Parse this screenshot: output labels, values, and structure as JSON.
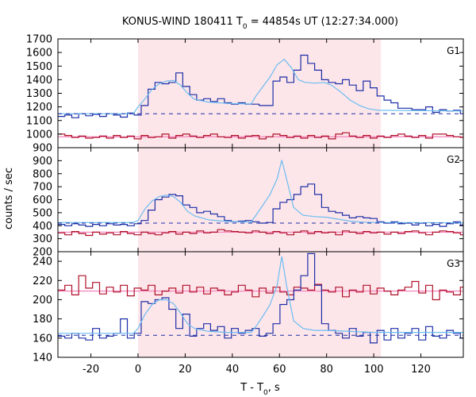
{
  "chart_data": {
    "type": "line",
    "title_main": "KONUS-WIND 180411 T",
    "title_sub": "0",
    "title_rest": " = 44854s UT (12:27:34.000)",
    "xlabel_main": "T - T",
    "xlabel_sub": "0",
    "xlabel_rest": ", s",
    "ylabel": "counts / sec",
    "xlim": [
      -34,
      138
    ],
    "xticks": [
      -20,
      0,
      20,
      40,
      60,
      80,
      100,
      120
    ],
    "shaded_interval": [
      0,
      103
    ],
    "bin_width": 2.944,
    "colors": {
      "trigger": "#1c2ea6",
      "background": "#b0102a",
      "model": "#6bbcf0",
      "bg_fit": "#f48cc0",
      "shade": "#fde6ea"
    },
    "panels": [
      {
        "label": "G1",
        "ylim": [
          900,
          1700
        ],
        "yticks": [
          900,
          1000,
          1100,
          1200,
          1300,
          1400,
          1500,
          1600,
          1700
        ],
        "bg_level": 1150,
        "bg_fit_level": 980,
        "trigger": [
          1130,
          1140,
          1120,
          1150,
          1135,
          1145,
          1130,
          1150,
          1140,
          1125,
          1155,
          1140,
          1210,
          1330,
          1380,
          1370,
          1380,
          1450,
          1350,
          1290,
          1250,
          1260,
          1240,
          1260,
          1230,
          1220,
          1230,
          1220,
          1220,
          1210,
          1210,
          1390,
          1420,
          1380,
          1470,
          1580,
          1520,
          1470,
          1400,
          1380,
          1370,
          1400,
          1360,
          1320,
          1390,
          1340,
          1280,
          1250,
          1230,
          1190,
          1190,
          1180,
          1180,
          1200,
          1160,
          1180,
          1170,
          1175,
          1150,
          1170,
          1180,
          1170,
          1140,
          1200,
          1155,
          1140
        ],
        "background": [
          1000,
          990,
          975,
          985,
          970,
          975,
          985,
          970,
          990,
          975,
          985,
          965,
          990,
          975,
          980,
          1000,
          970,
          990,
          1000,
          985,
          975,
          990,
          1000,
          980,
          975,
          990,
          970,
          985,
          990,
          965,
          980,
          1000,
          990,
          975,
          985,
          970,
          990,
          975,
          985,
          965,
          1000,
          1010,
          985,
          975,
          990,
          970,
          985,
          975,
          990,
          1000,
          985,
          975,
          990,
          970,
          1000,
          1000,
          990,
          980,
          975,
          990,
          960,
          980,
          985,
          970,
          960,
          975
        ],
        "model": [
          [
            -34,
            1150
          ],
          [
            -2,
            1150
          ],
          [
            0,
            1200
          ],
          [
            3,
            1260
          ],
          [
            6,
            1330
          ],
          [
            9,
            1370
          ],
          [
            12,
            1390
          ],
          [
            15,
            1395
          ],
          [
            18,
            1360
          ],
          [
            21,
            1300
          ],
          [
            24,
            1255
          ],
          [
            30,
            1235
          ],
          [
            38,
            1225
          ],
          [
            48,
            1222
          ],
          [
            50,
            1280
          ],
          [
            53,
            1350
          ],
          [
            56,
            1420
          ],
          [
            59,
            1510
          ],
          [
            62,
            1550
          ],
          [
            65,
            1490
          ],
          [
            68,
            1400
          ],
          [
            71,
            1380
          ],
          [
            75,
            1375
          ],
          [
            79,
            1380
          ],
          [
            82,
            1360
          ],
          [
            86,
            1310
          ],
          [
            90,
            1250
          ],
          [
            94,
            1210
          ],
          [
            98,
            1185
          ],
          [
            102,
            1175
          ],
          [
            138,
            1170
          ]
        ]
      },
      {
        "label": "G2",
        "ylim": [
          200,
          1000
        ],
        "yticks": [
          200,
          300,
          400,
          500,
          600,
          700,
          800,
          900
        ],
        "bg_level": 420,
        "bg_fit_level": 350,
        "trigger": [
          410,
          400,
          415,
          405,
          395,
          410,
          400,
          415,
          405,
          410,
          400,
          415,
          440,
          520,
          600,
          620,
          640,
          630,
          560,
          540,
          500,
          510,
          490,
          470,
          440,
          430,
          435,
          440,
          430,
          420,
          425,
          530,
          580,
          600,
          640,
          700,
          720,
          640,
          540,
          510,
          500,
          480,
          460,
          470,
          460,
          455,
          430,
          420,
          430,
          415,
          420,
          405,
          420,
          400,
          410,
          395,
          415,
          430,
          405,
          410,
          400,
          420,
          405,
          395,
          410,
          400
        ],
        "background": [
          345,
          330,
          355,
          340,
          325,
          350,
          335,
          345,
          330,
          355,
          340,
          330,
          350,
          340,
          330,
          345,
          355,
          335,
          350,
          340,
          360,
          345,
          350,
          370,
          360,
          355,
          350,
          345,
          360,
          350,
          340,
          355,
          345,
          330,
          350,
          360,
          340,
          355,
          345,
          350,
          330,
          360,
          350,
          340,
          355,
          345,
          350,
          335,
          350,
          340,
          355,
          360,
          345,
          330,
          350,
          360,
          355,
          345,
          330,
          340,
          350,
          335,
          355,
          340,
          350,
          335
        ],
        "model": [
          [
            -34,
            425
          ],
          [
            -2,
            425
          ],
          [
            0,
            440
          ],
          [
            3,
            530
          ],
          [
            6,
            590
          ],
          [
            9,
            625
          ],
          [
            12,
            635
          ],
          [
            15,
            625
          ],
          [
            18,
            580
          ],
          [
            21,
            510
          ],
          [
            24,
            475
          ],
          [
            30,
            445
          ],
          [
            38,
            432
          ],
          [
            48,
            428
          ],
          [
            50,
            480
          ],
          [
            53,
            560
          ],
          [
            56,
            640
          ],
          [
            59,
            760
          ],
          [
            61,
            905
          ],
          [
            63,
            760
          ],
          [
            66,
            540
          ],
          [
            70,
            480
          ],
          [
            75,
            470
          ],
          [
            80,
            465
          ],
          [
            85,
            450
          ],
          [
            90,
            435
          ],
          [
            95,
            428
          ],
          [
            100,
            425
          ],
          [
            138,
            422
          ]
        ]
      },
      {
        "label": "G3",
        "ylim": [
          140,
          250
        ],
        "yticks": [
          140,
          160,
          180,
          200,
          220,
          240
        ],
        "bg_level": 163,
        "bg_fit_level": 209,
        "trigger": [
          162,
          160,
          165,
          160,
          158,
          170,
          160,
          162,
          165,
          180,
          160,
          165,
          198,
          196,
          200,
          202,
          190,
          170,
          185,
          162,
          170,
          175,
          168,
          172,
          160,
          170,
          165,
          168,
          170,
          162,
          165,
          175,
          195,
          200,
          210,
          225,
          248,
          215,
          175,
          168,
          165,
          160,
          170,
          162,
          166,
          155,
          168,
          158,
          170,
          160,
          165,
          170,
          158,
          172,
          162,
          160,
          168,
          165,
          160,
          162,
          170,
          158,
          165,
          160,
          165,
          160
        ],
        "background": [
          210,
          215,
          205,
          225,
          212,
          218,
          206,
          213,
          208,
          215,
          204,
          212,
          210,
          215,
          205,
          209,
          212,
          207,
          215,
          208,
          213,
          206,
          212,
          210,
          205,
          208,
          215,
          210,
          203,
          212,
          207,
          213,
          208,
          205,
          213,
          212,
          210,
          216,
          210,
          208,
          213,
          203,
          210,
          208,
          215,
          206,
          212,
          209,
          205,
          210,
          213,
          219,
          207,
          215,
          200,
          210,
          208,
          205,
          213,
          208,
          221,
          190,
          209,
          215,
          205,
          213
        ],
        "model": [
          [
            -34,
            165
          ],
          [
            -2,
            165
          ],
          [
            0,
            170
          ],
          [
            3,
            185
          ],
          [
            6,
            195
          ],
          [
            9,
            200
          ],
          [
            12,
            200
          ],
          [
            15,
            196
          ],
          [
            18,
            186
          ],
          [
            21,
            175
          ],
          [
            24,
            170
          ],
          [
            30,
            167
          ],
          [
            38,
            166
          ],
          [
            48,
            166
          ],
          [
            50,
            172
          ],
          [
            53,
            183
          ],
          [
            56,
            195
          ],
          [
            59,
            215
          ],
          [
            61,
            245
          ],
          [
            63,
            215
          ],
          [
            66,
            178
          ],
          [
            70,
            170
          ],
          [
            75,
            168
          ],
          [
            80,
            168
          ],
          [
            90,
            167
          ],
          [
            100,
            166
          ],
          [
            138,
            166
          ]
        ]
      }
    ]
  }
}
